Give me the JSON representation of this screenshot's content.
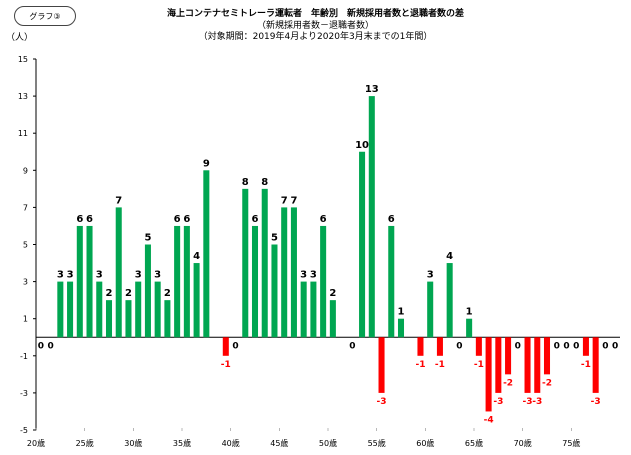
{
  "graph_tag": "グラフ③",
  "chart_data": {
    "type": "bar",
    "title": "海上コンテナセミトレーラ運転者　年齢別　新規採用者数と退職者数の差",
    "subtitle": "（新規採用者数－退職者数）",
    "period": "（対象期間：2019年4月より2020年3月末までの1年間）",
    "ylabel": "（人）",
    "xlabel": "",
    "ylim": [
      -5,
      15
    ],
    "yticks": [
      15,
      13,
      11,
      9,
      7,
      5,
      3,
      1,
      -1,
      -3,
      -5
    ],
    "grid": false,
    "legend": "none",
    "x_start_age": 20,
    "x_end_age": 79,
    "xtick_labels": [
      "20歳",
      "25歳",
      "30歳",
      "35歳",
      "40歳",
      "45歳",
      "50歳",
      "55歳",
      "60歳",
      "65歳",
      "70歳",
      "75歳"
    ],
    "xtick_ages": [
      20,
      25,
      30,
      35,
      40,
      45,
      50,
      55,
      60,
      65,
      70,
      75
    ],
    "categories": [
      20,
      21,
      22,
      23,
      24,
      25,
      26,
      27,
      28,
      29,
      30,
      31,
      32,
      33,
      34,
      35,
      36,
      37,
      38,
      39,
      40,
      41,
      42,
      43,
      44,
      45,
      46,
      47,
      48,
      49,
      50,
      51,
      52,
      53,
      54,
      55,
      56,
      57,
      58,
      59,
      60,
      61,
      62,
      63,
      64,
      65,
      66,
      67,
      68,
      69,
      70,
      71,
      72,
      73,
      74,
      75,
      76,
      77,
      78,
      79
    ],
    "values": [
      0,
      0,
      3,
      3,
      6,
      6,
      3,
      2,
      7,
      2,
      3,
      5,
      3,
      2,
      6,
      6,
      4,
      9,
      null,
      -1,
      0,
      8,
      6,
      8,
      5,
      7,
      7,
      3,
      3,
      6,
      2,
      null,
      0,
      10,
      13,
      -3,
      6,
      1,
      null,
      -1,
      3,
      -1,
      4,
      0,
      1,
      -1,
      -4,
      -3,
      -2,
      0,
      -3,
      -3,
      -2,
      0,
      0,
      0,
      -1,
      -3,
      0,
      0
    ],
    "positive_color": "#00a651",
    "negative_color": "#ff0000"
  }
}
